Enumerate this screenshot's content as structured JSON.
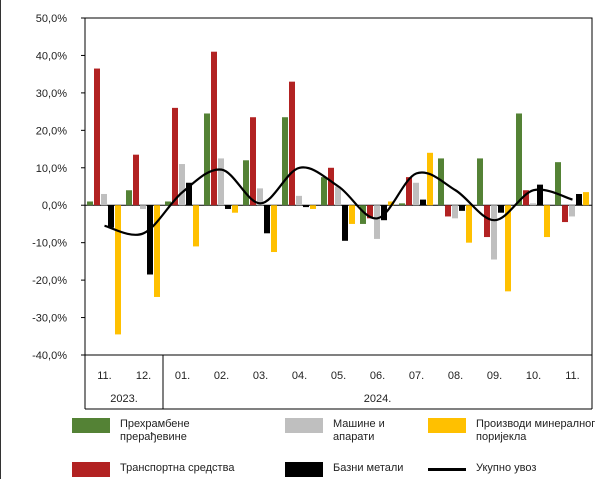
{
  "chart_data": {
    "type": "bar",
    "title": "",
    "xlabel": "",
    "ylabel": "",
    "ylim": [
      -40,
      50
    ],
    "y_ticks": [
      "50,0%",
      "40,0%",
      "30,0%",
      "20,0%",
      "10,0%",
      "0,0%",
      "-10,0%",
      "-20,0%",
      "-30,0%",
      "-40,0%"
    ],
    "categories": [
      "11.",
      "12.",
      "01.",
      "02.",
      "03.",
      "04.",
      "05.",
      "06.",
      "07.",
      "08.",
      "09.",
      "10.",
      "11."
    ],
    "year_labels": [
      {
        "label": "2023.",
        "from": 0,
        "to": 1
      },
      {
        "label": "2024.",
        "from": 2,
        "to": 12
      }
    ],
    "series": [
      {
        "name": "Прехрамбене прерађевине",
        "color": "#548235",
        "kind": "bar",
        "values": [
          1.0,
          4.0,
          1.0,
          24.5,
          12.0,
          23.5,
          7.5,
          -5.0,
          0.5,
          12.5,
          12.5,
          24.5,
          11.5
        ]
      },
      {
        "name": "Транспортна средства",
        "color": "#B22222",
        "kind": "bar",
        "values": [
          36.5,
          13.5,
          26.0,
          41.0,
          23.5,
          33.0,
          10.0,
          -3.5,
          7.5,
          -3.0,
          -8.5,
          4.0,
          -4.5
        ]
      },
      {
        "name": "Машине и апарати",
        "color": "#BFBFBF",
        "kind": "bar",
        "values": [
          3.0,
          -1.0,
          11.0,
          12.5,
          4.5,
          2.5,
          5.0,
          -9.0,
          6.0,
          -3.5,
          -14.5,
          0.5,
          -3.0
        ]
      },
      {
        "name": "Базни метали",
        "color": "#000000",
        "kind": "bar",
        "values": [
          -6.0,
          -18.5,
          6.0,
          -1.0,
          -7.5,
          -0.5,
          -9.5,
          -4.0,
          1.5,
          -1.5,
          -2.0,
          5.5,
          3.0
        ]
      },
      {
        "name": "Производи минералног порijекла",
        "color": "#FFC000",
        "kind": "bar",
        "values": [
          -34.5,
          -24.5,
          -11.0,
          -2.0,
          -12.5,
          -1.0,
          -5.0,
          1.0,
          14.0,
          -10.0,
          -23.0,
          -8.5,
          3.5
        ]
      },
      {
        "name": "Укупно увоз",
        "color": "#000000",
        "kind": "line",
        "values": [
          -5.5,
          -7.5,
          3.5,
          9.5,
          0.5,
          10.0,
          5.0,
          -3.5,
          8.5,
          4.0,
          -4.0,
          4.0,
          1.5
        ]
      }
    ],
    "legend_layout": [
      [
        "Прехрамбене прерађевине",
        "Машине и апарати",
        "Производи минералног порijекла"
      ],
      [
        "Транспортна средства",
        "Базни метали",
        "Укупно увоз"
      ]
    ],
    "legend_labels": {
      "food": "Прехрамбене\nпрерађевине",
      "machines": "Машине и\nапарати",
      "mineral": "Производи минералног\nпоријекла",
      "transport": "Транспортна средства",
      "metals": "Базни метали",
      "total": "Укупно увоз"
    },
    "grid": true,
    "legend_position": "bottom"
  }
}
